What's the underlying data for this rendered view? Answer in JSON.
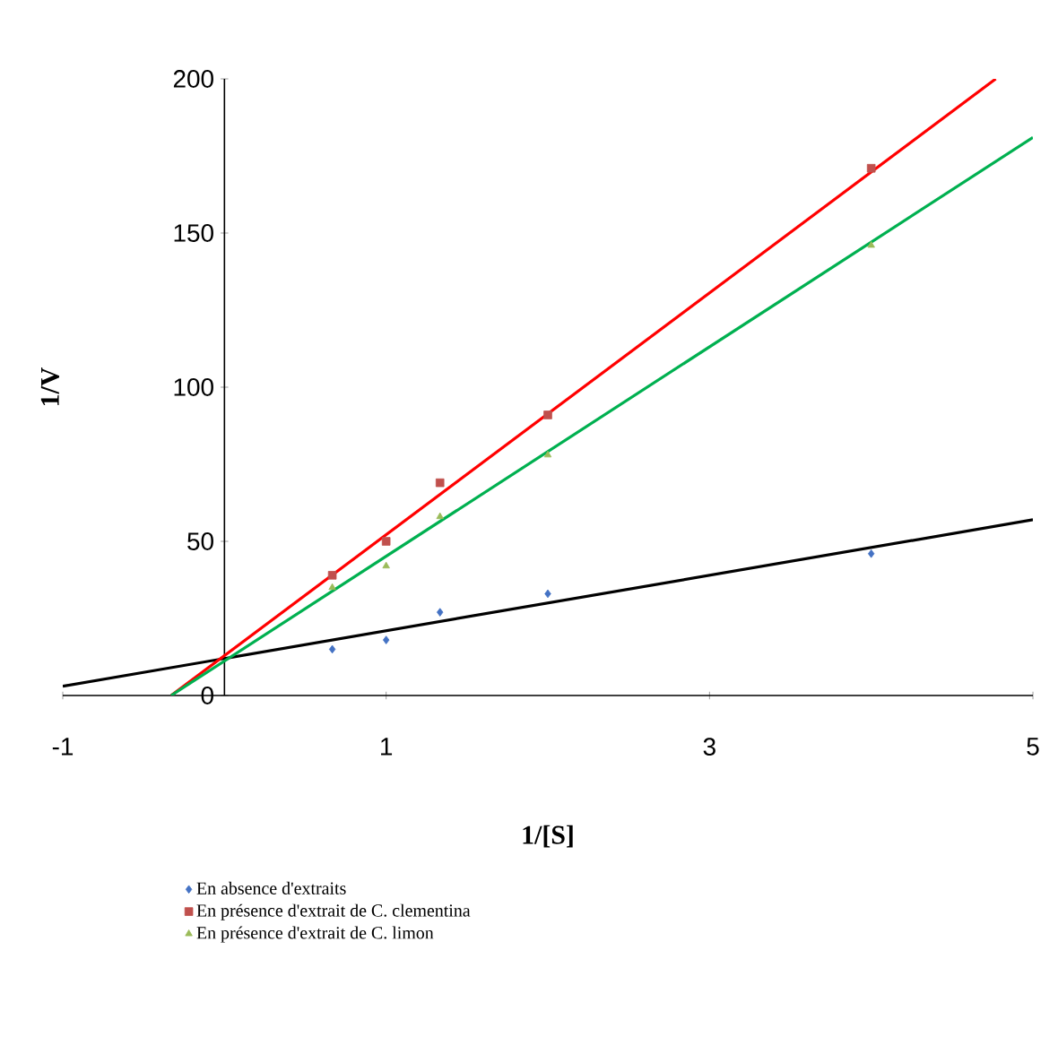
{
  "chart_data": {
    "type": "scatter",
    "xlabel": "1/[S]",
    "ylabel": "1/V",
    "xlim": [
      -1,
      5
    ],
    "ylim": [
      0,
      200
    ],
    "xticks": [
      -1,
      1,
      3,
      5
    ],
    "yticks": [
      0,
      50,
      100,
      150,
      200
    ],
    "grid": false,
    "legend": "bottom",
    "x": [
      0.667,
      1,
      1.333,
      2,
      4
    ],
    "series": [
      {
        "name": "En absence d'extraits",
        "color": "#4472c4",
        "marker": "diamond",
        "values": [
          15,
          18,
          27,
          33,
          46
        ]
      },
      {
        "name": "En présence d'extrait de C. clementina",
        "color": "#c0504d",
        "marker": "square",
        "values": [
          39,
          50,
          69,
          91,
          171
        ]
      },
      {
        "name": "En présence d'extrait de C. limon",
        "color": "#9bbb59",
        "marker": "triangle",
        "values": [
          35,
          42,
          58,
          78,
          146
        ]
      },
      {
        "type": "line",
        "color": "#000000",
        "marker": "none",
        "x": [
          -1,
          5
        ],
        "values": [
          3,
          57
        ]
      },
      {
        "type": "line",
        "color": "#ff0000",
        "marker": "none",
        "x": [
          -0.33,
          4.77
        ],
        "values": [
          0,
          200
        ]
      },
      {
        "type": "line",
        "color": "#00b050",
        "marker": "none",
        "x": [
          -0.33,
          5
        ],
        "values": [
          0,
          181
        ]
      }
    ]
  }
}
